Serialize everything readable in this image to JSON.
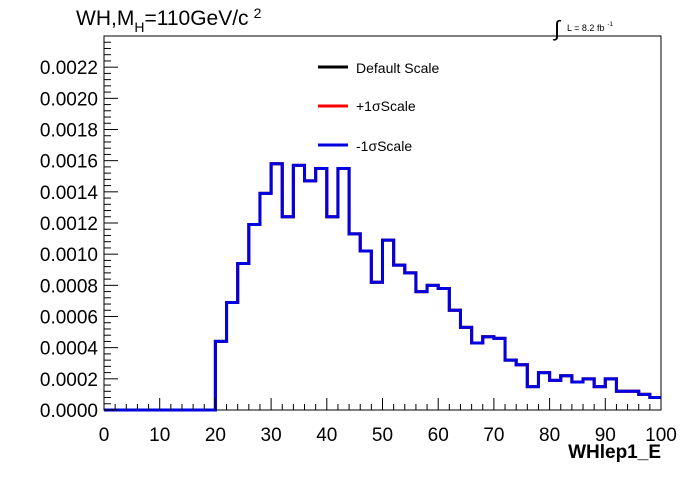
{
  "title": "WH,M",
  "title_sub": "H",
  "title_rest": "=110GeV/c",
  "title_sup": "2",
  "lumi": {
    "prefix": "∫",
    "text": "L = 8.2 fb",
    "sup": "-1"
  },
  "legend": [
    {
      "label": "Default Scale",
      "color": "#000000"
    },
    {
      "label": "+1σScale",
      "color": "#ff0000"
    },
    {
      "label": "-1σScale",
      "color": "#0000e0"
    }
  ],
  "chart_data": {
    "type": "line",
    "style": "step-histogram",
    "xlabel": "WHlep1_E",
    "ylabel": "",
    "xlim": [
      0,
      100
    ],
    "ylim": [
      0,
      0.0024
    ],
    "x_ticks": [
      "0",
      "10",
      "20",
      "30",
      "40",
      "50",
      "60",
      "70",
      "80",
      "90",
      "100"
    ],
    "y_ticks": [
      "0.0000",
      "0.0002",
      "0.0004",
      "0.0006",
      "0.0008",
      "0.0010",
      "0.0012",
      "0.0014",
      "0.0016",
      "0.0018",
      "0.0020",
      "0.0022"
    ],
    "bin_edges": [
      0,
      2,
      4,
      6,
      8,
      10,
      12,
      14,
      16,
      18,
      20,
      22,
      24,
      26,
      28,
      30,
      32,
      34,
      36,
      38,
      40,
      42,
      44,
      46,
      48,
      50,
      52,
      54,
      56,
      58,
      60,
      62,
      64,
      66,
      68,
      70,
      72,
      74,
      76,
      78,
      80,
      82,
      84,
      86,
      88,
      90,
      92,
      94,
      96,
      98,
      100
    ],
    "series": [
      {
        "name": "Default Scale",
        "color": "#000000",
        "values": [
          0,
          0,
          0,
          0,
          0,
          0,
          0,
          0,
          0,
          0,
          0.00044,
          0.00069,
          0.00094,
          0.00119,
          0.00139,
          0.00158,
          0.00124,
          0.00157,
          0.00147,
          0.00155,
          0.00124,
          0.00155,
          0.00113,
          0.00102,
          0.00082,
          0.00109,
          0.00093,
          0.00088,
          0.00076,
          0.0008,
          0.00078,
          0.00064,
          0.00053,
          0.00043,
          0.00047,
          0.00046,
          0.00032,
          0.00029,
          0.00015,
          0.00024,
          0.00019,
          0.00022,
          0.00018,
          0.0002,
          0.00015,
          0.0002,
          0.00012,
          0.00012,
          0.0001,
          8e-05
        ]
      },
      {
        "name": "+1σScale",
        "color": "#ff0000",
        "values": [
          0,
          0,
          0,
          0,
          0,
          0,
          0,
          0,
          0,
          0,
          0.00044,
          0.00069,
          0.00094,
          0.00119,
          0.00139,
          0.00158,
          0.00124,
          0.00157,
          0.00147,
          0.00155,
          0.00124,
          0.00155,
          0.00113,
          0.00102,
          0.00082,
          0.00109,
          0.00093,
          0.00088,
          0.00076,
          0.0008,
          0.00078,
          0.00064,
          0.00053,
          0.00043,
          0.00047,
          0.00046,
          0.00032,
          0.00029,
          0.00015,
          0.00024,
          0.00019,
          0.00022,
          0.00018,
          0.0002,
          0.00015,
          0.0002,
          0.00012,
          0.00012,
          0.0001,
          8e-05
        ]
      },
      {
        "name": "-1σScale",
        "color": "#0000e0",
        "values": [
          0,
          0,
          0,
          0,
          0,
          0,
          0,
          0,
          0,
          0,
          0.00044,
          0.00069,
          0.00094,
          0.00119,
          0.00139,
          0.00158,
          0.00124,
          0.00157,
          0.00147,
          0.00155,
          0.00124,
          0.00155,
          0.00113,
          0.00102,
          0.00082,
          0.00109,
          0.00093,
          0.00088,
          0.00076,
          0.0008,
          0.00078,
          0.00064,
          0.00053,
          0.00043,
          0.00047,
          0.00046,
          0.00032,
          0.00029,
          0.00015,
          0.00024,
          0.00019,
          0.00022,
          0.00018,
          0.0002,
          0.00015,
          0.0002,
          0.00012,
          0.00012,
          0.0001,
          8e-05
        ]
      }
    ],
    "grid": false,
    "legend_position": "top-center"
  }
}
